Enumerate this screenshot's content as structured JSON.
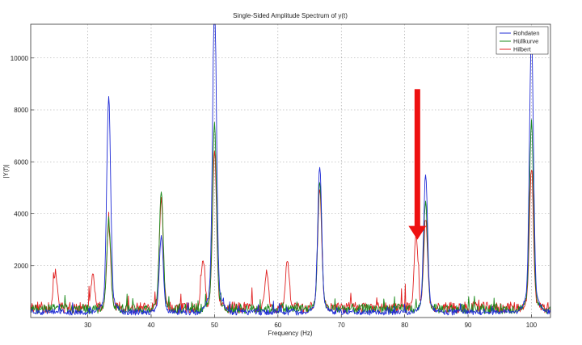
{
  "chart_data": {
    "type": "line",
    "title": "Single-Sided Amplitude Spectrum of y(t)",
    "xlabel": "Frequency (Hz)",
    "ylabel": "|Y(f)|",
    "xlim": [
      21,
      103
    ],
    "ylim": [
      0,
      11300
    ],
    "xticks": [
      30,
      40,
      50,
      60,
      70,
      80,
      90,
      100
    ],
    "yticks": [
      2000,
      4000,
      6000,
      8000,
      10000
    ],
    "grid": true,
    "legend_position": "top-right",
    "series": [
      {
        "name": "Rohdaten",
        "color": "#1f2bd6",
        "baseline": 260,
        "peaks": [
          {
            "x": 33.3,
            "y": 7800
          },
          {
            "x": 41.6,
            "y": 2800
          },
          {
            "x": 50.0,
            "y": 11300
          },
          {
            "x": 66.6,
            "y": 5300
          },
          {
            "x": 83.3,
            "y": 5000
          },
          {
            "x": 100.0,
            "y": 10100
          }
        ]
      },
      {
        "name": "Hüllkurve",
        "color": "#1a8a1a",
        "baseline": 420,
        "peaks": [
          {
            "x": 33.3,
            "y": 3200
          },
          {
            "x": 41.6,
            "y": 4300
          },
          {
            "x": 50.0,
            "y": 6700
          },
          {
            "x": 66.6,
            "y": 4700
          },
          {
            "x": 83.3,
            "y": 3900
          },
          {
            "x": 100.0,
            "y": 6800
          }
        ]
      },
      {
        "name": "Hilbert",
        "color": "#e02020",
        "baseline": 480,
        "peaks": [
          {
            "x": 24.9,
            "y": 1400
          },
          {
            "x": 30.8,
            "y": 1300
          },
          {
            "x": 33.3,
            "y": 3100
          },
          {
            "x": 41.6,
            "y": 4000
          },
          {
            "x": 48.2,
            "y": 1900
          },
          {
            "x": 50.0,
            "y": 5700
          },
          {
            "x": 58.2,
            "y": 1400
          },
          {
            "x": 61.5,
            "y": 1800
          },
          {
            "x": 66.6,
            "y": 4400
          },
          {
            "x": 81.8,
            "y": 2700
          },
          {
            "x": 83.3,
            "y": 3300
          },
          {
            "x": 100.0,
            "y": 5100
          }
        ]
      }
    ],
    "annotation": {
      "type": "arrow",
      "color": "#ee1111",
      "x": 82.0,
      "y_from": 8800,
      "y_to": 3000
    }
  }
}
